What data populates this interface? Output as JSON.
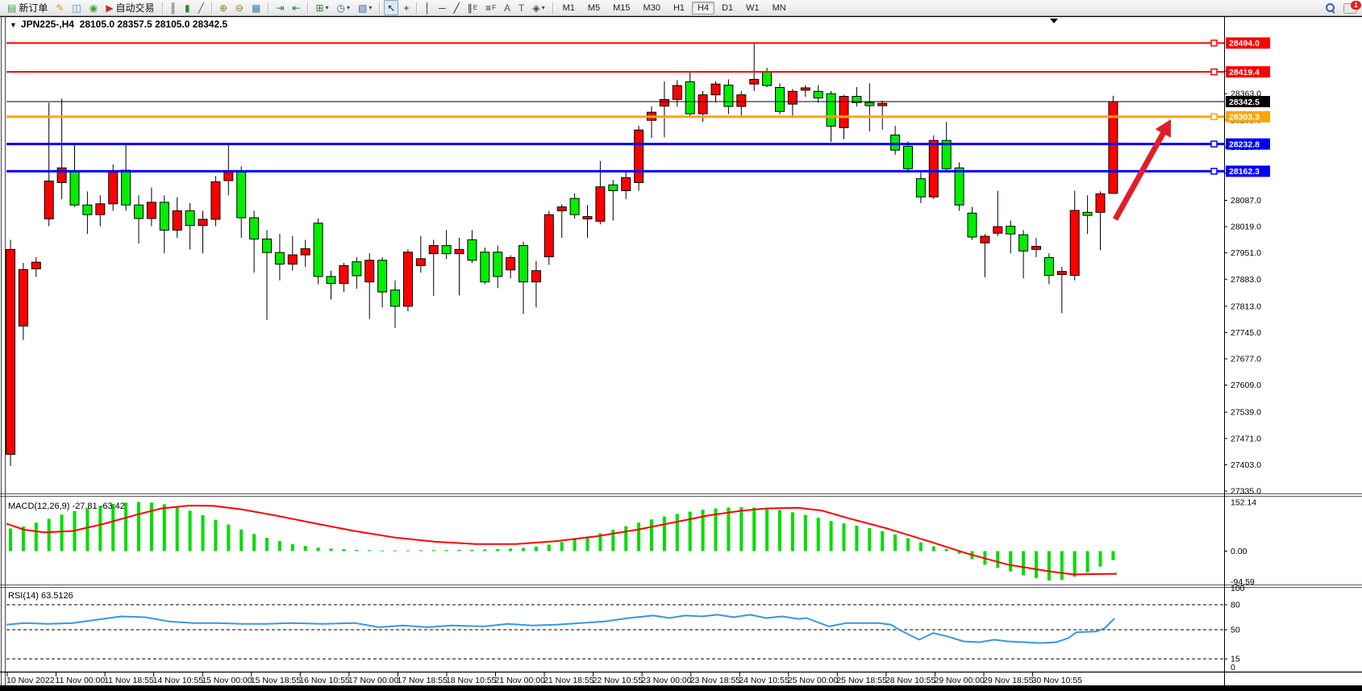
{
  "window": {
    "collapse_glyph": "▼",
    "title_symbol": "JPN225-,H4",
    "ohlc": "28105.0 28357.5 28105.0 28342.5"
  },
  "toolbar": {
    "items": [
      {
        "name": "new-order-button",
        "glyph": "▤",
        "glyph_color": "#3f9e3f",
        "label": "新订单"
      },
      {
        "name": "crayon-button",
        "glyph": "✎",
        "glyph_color": "#d2a017"
      },
      {
        "name": "chart-window-button",
        "glyph": "◫",
        "glyph_color": "#4f7dc0"
      },
      {
        "name": "signal-button",
        "glyph": "◉",
        "glyph_color": "#3f9e3f"
      },
      {
        "name": "autotrading-button",
        "glyph": "▶",
        "glyph_color": "#c63326",
        "label": "自动交易"
      },
      {
        "sep": true
      },
      {
        "name": "bar-chart-button",
        "glyph": "║",
        "glyph_color": "#2f6d2f"
      },
      {
        "name": "candlestick-chart-button",
        "glyph": "▮",
        "glyph_color": "#2f8d2f"
      },
      {
        "name": "line-chart-button",
        "glyph": "╱",
        "glyph_color": "#2f6d2f"
      },
      {
        "sep": true
      },
      {
        "name": "zoom-in-button",
        "glyph": "⊕",
        "glyph_color": "#8d7a1f"
      },
      {
        "name": "zoom-out-button",
        "glyph": "⊖",
        "glyph_color": "#8d7a1f"
      },
      {
        "name": "tile-windows-button",
        "glyph": "▦",
        "glyph_color": "#3a7fae"
      },
      {
        "sep": true
      },
      {
        "name": "auto-scroll-button",
        "glyph": "⇥",
        "glyph_color": "#2f7d2f"
      },
      {
        "name": "chart-shift-button",
        "glyph": "⇤",
        "glyph_color": "#2f7d2f"
      },
      {
        "sep": true
      },
      {
        "name": "indicators-button",
        "glyph": "⊞",
        "glyph_color": "#2f7d2f",
        "dropdown": true
      },
      {
        "name": "periods-button",
        "glyph": "◷",
        "glyph_color": "#35699f",
        "dropdown": true
      },
      {
        "name": "templates-button",
        "glyph": "▧",
        "glyph_color": "#35699f",
        "dropdown": true
      },
      {
        "sep": true
      },
      {
        "name": "cursor-button",
        "glyph": "↖",
        "glyph_color": "#222222",
        "active": true
      },
      {
        "name": "crosshair-button",
        "glyph": "+",
        "glyph_color": "#222222"
      },
      {
        "sep": true
      },
      {
        "name": "vertical-line-button",
        "glyph": "│",
        "glyph_color": "#222222"
      },
      {
        "name": "horizontal-line-button",
        "glyph": "─",
        "glyph_color": "#222222"
      },
      {
        "name": "trendline-button",
        "glyph": "╱",
        "glyph_color": "#222222"
      },
      {
        "name": "equidistant-channel-button",
        "glyph": "∥",
        "glyph_color": "#222222",
        "sub": "E"
      },
      {
        "name": "fibonacci-button",
        "glyph": "≡",
        "glyph_color": "#222222",
        "sub": "F"
      },
      {
        "name": "text-button",
        "glyph": "A",
        "glyph_color": "#555555"
      },
      {
        "name": "text-label-button",
        "glyph": "T",
        "glyph_color": "#555555"
      },
      {
        "name": "arrows-button",
        "glyph": "◈",
        "glyph_color": "#444444",
        "dropdown": true
      },
      {
        "sep": true
      }
    ],
    "dropdown_glyph": "▾",
    "timeframes": [
      {
        "label": "M1"
      },
      {
        "label": "M5"
      },
      {
        "label": "M15"
      },
      {
        "label": "M30"
      },
      {
        "label": "H1"
      },
      {
        "label": "H4",
        "active": true
      },
      {
        "label": "D1"
      },
      {
        "label": "W1"
      },
      {
        "label": "MN"
      }
    ],
    "chat_badge": "1"
  },
  "colors": {
    "bull_candle": "#ff0000",
    "bear_candle": "#00ee00",
    "wick": "#000000",
    "macd_bar": "#00dd00",
    "macd_signal": "#ff0000",
    "rsi_line": "#3a96e0",
    "level_red": "#ff0000",
    "level_orange": "#ffa500",
    "level_blue": "#0000ff",
    "current_price_label_bg": "#000000",
    "annotation_arrow": "#e01e28"
  },
  "chart_data": {
    "type": "candlestick+indicators",
    "symbol": "JPN225-",
    "timeframe": "H4",
    "current_price": 28342.5,
    "price_axis_ticks": [
      28421.0,
      28363.0,
      28295.0,
      28225.0,
      28157.0,
      28087.0,
      28019.0,
      27951.0,
      27883.0,
      27813.0,
      27745.0,
      27677.0,
      27609.0,
      27539.0,
      27471.0,
      27403.0,
      27335.0
    ],
    "levels": [
      {
        "price": 28494.0,
        "label": "28494.0",
        "color": "#ff0000",
        "width": 2,
        "current": false
      },
      {
        "price": 28419.4,
        "label": "28419.4",
        "color": "#ff0000",
        "width": 2,
        "current": false
      },
      {
        "price": 28342.5,
        "label": "28342.5",
        "color": "#000000",
        "width": 1,
        "current": true
      },
      {
        "price": 28303.3,
        "label": "28303.3",
        "color": "#ffa500",
        "width": 3,
        "current": false
      },
      {
        "price": 28232.8,
        "label": "28232.8",
        "color": "#0000ff",
        "width": 3,
        "current": false
      },
      {
        "price": 28162.3,
        "label": "28162.3",
        "color": "#0000ff",
        "width": 3,
        "current": false
      }
    ],
    "candles_ohlc": [
      [
        27430,
        27985,
        27400,
        27960
      ],
      [
        27762,
        27925,
        27726,
        27908
      ],
      [
        27910,
        27940,
        27889,
        27927
      ],
      [
        28039,
        28340,
        28020,
        28137
      ],
      [
        28133,
        28350,
        28090,
        28171
      ],
      [
        28164,
        28230,
        28070,
        28075
      ],
      [
        28075,
        28110,
        28000,
        28050
      ],
      [
        28050,
        28100,
        28020,
        28078
      ],
      [
        28078,
        28180,
        28060,
        28160
      ],
      [
        28165,
        28230,
        28060,
        28075
      ],
      [
        28075,
        28100,
        27975,
        28040
      ],
      [
        28040,
        28120,
        28020,
        28082
      ],
      [
        28082,
        28100,
        27950,
        28010
      ],
      [
        28010,
        28095,
        27990,
        28060
      ],
      [
        28060,
        28080,
        27960,
        28022
      ],
      [
        28022,
        28060,
        27950,
        28038
      ],
      [
        28038,
        28150,
        28020,
        28135
      ],
      [
        28138,
        28230,
        28100,
        28160
      ],
      [
        28160,
        28175,
        27990,
        28042
      ],
      [
        28042,
        28060,
        27900,
        27987
      ],
      [
        27987,
        28010,
        27778,
        27952
      ],
      [
        27952,
        28000,
        27880,
        27922
      ],
      [
        27922,
        27995,
        27905,
        27946
      ],
      [
        27946,
        27985,
        27915,
        27962
      ],
      [
        28028,
        28040,
        27870,
        27890
      ],
      [
        27890,
        27905,
        27830,
        27872
      ],
      [
        27872,
        27925,
        27850,
        27918
      ],
      [
        27928,
        27940,
        27858,
        27892
      ],
      [
        27876,
        27950,
        27780,
        27932
      ],
      [
        27932,
        27940,
        27810,
        27850
      ],
      [
        27855,
        27880,
        27757,
        27813
      ],
      [
        27813,
        27960,
        27800,
        27953
      ],
      [
        27918,
        27995,
        27900,
        27936
      ],
      [
        27949,
        27985,
        27840,
        27970
      ],
      [
        27970,
        28010,
        27935,
        27949
      ],
      [
        27949,
        27990,
        27841,
        27960
      ],
      [
        27985,
        28010,
        27925,
        27932
      ],
      [
        27953,
        27965,
        27870,
        27876
      ],
      [
        27953,
        27970,
        27860,
        27890
      ],
      [
        27907,
        27945,
        27885,
        27939
      ],
      [
        27970,
        27980,
        27793,
        27876
      ],
      [
        27876,
        27930,
        27810,
        27905
      ],
      [
        27941,
        28060,
        27920,
        28050
      ],
      [
        28060,
        28077,
        27990,
        28070
      ],
      [
        28092,
        28105,
        28040,
        28050
      ],
      [
        28039,
        28075,
        27990,
        28045
      ],
      [
        28033,
        28189,
        28025,
        28122
      ],
      [
        28127,
        28140,
        28035,
        28112
      ],
      [
        28112,
        28165,
        28090,
        28146
      ],
      [
        28133,
        28280,
        28112,
        28269
      ],
      [
        28294,
        28330,
        28248,
        28315
      ],
      [
        28331,
        28395,
        28250,
        28348
      ],
      [
        28348,
        28398,
        28330,
        28384
      ],
      [
        28394,
        28420,
        28300,
        28311
      ],
      [
        28311,
        28370,
        28290,
        28360
      ],
      [
        28360,
        28395,
        28340,
        28388
      ],
      [
        28385,
        28400,
        28310,
        28330
      ],
      [
        28330,
        28370,
        28300,
        28360
      ],
      [
        28388,
        28492,
        28370,
        28400
      ],
      [
        28419,
        28430,
        28380,
        28384
      ],
      [
        28379,
        28390,
        28310,
        28317
      ],
      [
        28336,
        28375,
        28300,
        28369
      ],
      [
        28372,
        28385,
        28355,
        28378
      ],
      [
        28369,
        28385,
        28340,
        28352
      ],
      [
        28363,
        28370,
        28238,
        28279
      ],
      [
        28275,
        28360,
        28245,
        28356
      ],
      [
        28356,
        28380,
        28330,
        28340
      ],
      [
        28340,
        28390,
        28265,
        28332
      ],
      [
        28332,
        28345,
        28270,
        28338
      ],
      [
        28256,
        28280,
        28205,
        28217
      ],
      [
        28227,
        28240,
        28160,
        28169
      ],
      [
        28143,
        28160,
        28080,
        28096
      ],
      [
        28096,
        28255,
        28090,
        28242
      ],
      [
        28242,
        28290,
        28160,
        28169
      ],
      [
        28171,
        28185,
        28060,
        28075
      ],
      [
        28054,
        28070,
        27985,
        27992
      ],
      [
        27977,
        28000,
        27888,
        27994
      ],
      [
        28002,
        28112,
        27995,
        28019
      ],
      [
        28020,
        28035,
        27950,
        28000
      ],
      [
        27998,
        28010,
        27885,
        27956
      ],
      [
        27960,
        27990,
        27940,
        27968
      ],
      [
        27939,
        27950,
        27870,
        27893
      ],
      [
        27895,
        27915,
        27795,
        27903
      ],
      [
        27893,
        28112,
        27880,
        28061
      ],
      [
        28056,
        28100,
        28000,
        28048
      ],
      [
        28056,
        28110,
        27958,
        28104
      ],
      [
        28105,
        28357.5,
        28105,
        28342.5
      ]
    ],
    "macd": {
      "label": "MACD(12,26,9)",
      "values_text": "-27.81 -63.42",
      "scale": [
        "152.14",
        "0.00",
        "-94.59"
      ],
      "histogram": [
        70,
        76,
        88,
        100,
        113,
        124,
        132,
        139,
        146,
        150,
        152,
        150,
        145,
        136,
        125,
        111,
        97,
        82,
        67,
        53,
        41,
        31,
        22,
        16,
        11,
        8,
        6,
        4,
        3,
        2,
        2,
        2,
        3,
        3,
        3,
        4,
        4,
        5,
        6,
        8,
        10,
        14,
        20,
        28,
        36,
        45,
        55,
        66,
        77,
        88,
        98,
        107,
        115,
        122,
        128,
        132,
        135,
        136,
        135,
        132,
        127,
        120,
        112,
        103,
        93,
        86,
        79,
        71,
        62,
        52,
        40,
        27,
        15,
        7,
        -8,
        -25,
        -42,
        -52,
        -63,
        -75,
        -83,
        -91,
        -89,
        -79,
        -66,
        -48,
        -28
      ],
      "signal_points": [
        [
          8,
          85
        ],
        [
          30,
          66
        ],
        [
          55,
          58
        ],
        [
          90,
          62
        ],
        [
          130,
          85
        ],
        [
          170,
          113
        ],
        [
          200,
          132
        ],
        [
          235,
          141
        ],
        [
          265,
          140
        ],
        [
          300,
          129
        ],
        [
          340,
          111
        ],
        [
          390,
          86
        ],
        [
          440,
          62
        ],
        [
          490,
          42
        ],
        [
          540,
          29
        ],
        [
          590,
          22
        ],
        [
          640,
          22
        ],
        [
          690,
          31
        ],
        [
          740,
          46
        ],
        [
          790,
          66
        ],
        [
          840,
          91
        ],
        [
          880,
          111
        ],
        [
          920,
          125
        ],
        [
          950,
          132
        ],
        [
          990,
          134
        ],
        [
          1020,
          125
        ],
        [
          1050,
          103
        ],
        [
          1100,
          70
        ],
        [
          1150,
          32
        ],
        [
          1200,
          -8
        ],
        [
          1250,
          -42
        ],
        [
          1300,
          -62
        ],
        [
          1330,
          -72
        ],
        [
          1385,
          -70
        ]
      ]
    },
    "rsi": {
      "label": "RSI(14)",
      "value_text": "63.5126",
      "scale": [
        "100",
        "80",
        "50",
        "15",
        "0"
      ],
      "dashed_levels": [
        80,
        50,
        15
      ],
      "points": [
        [
          8,
          56
        ],
        [
          30,
          58
        ],
        [
          60,
          57
        ],
        [
          90,
          58
        ],
        [
          120,
          62
        ],
        [
          150,
          66
        ],
        [
          180,
          65
        ],
        [
          210,
          60
        ],
        [
          240,
          58
        ],
        [
          270,
          58
        ],
        [
          300,
          57
        ],
        [
          330,
          57
        ],
        [
          360,
          58
        ],
        [
          400,
          57
        ],
        [
          440,
          58
        ],
        [
          470,
          53
        ],
        [
          500,
          55
        ],
        [
          530,
          53
        ],
        [
          560,
          55
        ],
        [
          600,
          54
        ],
        [
          630,
          57
        ],
        [
          660,
          55
        ],
        [
          690,
          56
        ],
        [
          720,
          58
        ],
        [
          750,
          60
        ],
        [
          780,
          64
        ],
        [
          810,
          67
        ],
        [
          830,
          64
        ],
        [
          850,
          67
        ],
        [
          870,
          66
        ],
        [
          890,
          68
        ],
        [
          910,
          65
        ],
        [
          930,
          68
        ],
        [
          950,
          64
        ],
        [
          970,
          66
        ],
        [
          990,
          63
        ],
        [
          1000,
          64
        ],
        [
          1028,
          54
        ],
        [
          1050,
          58
        ],
        [
          1090,
          58
        ],
        [
          1105,
          56
        ],
        [
          1115,
          50
        ],
        [
          1140,
          38
        ],
        [
          1157,
          46
        ],
        [
          1175,
          42
        ],
        [
          1195,
          36
        ],
        [
          1215,
          35
        ],
        [
          1233,
          38
        ],
        [
          1250,
          36
        ],
        [
          1270,
          35
        ],
        [
          1290,
          34
        ],
        [
          1310,
          35
        ],
        [
          1325,
          40
        ],
        [
          1335,
          47
        ],
        [
          1360,
          48
        ],
        [
          1370,
          52
        ],
        [
          1382,
          63.5
        ]
      ]
    },
    "x_axis_labels": [
      "10 Nov 2022",
      "11 Nov 00:00",
      "11 Nov 18:55",
      "14 Nov 10:55",
      "15 Nov 00:00",
      "15 Nov 18:55",
      "16 Nov 10:55",
      "17 Nov 00:00",
      "17 Nov 18:55",
      "18 Nov 10:55",
      "21 Nov 00:00",
      "21 Nov 18:55",
      "22 Nov 10:55",
      "23 Nov 00:00",
      "23 Nov 18:55",
      "24 Nov 10:55",
      "25 Nov 00:00",
      "25 Nov 18:55",
      "28 Nov 10:55",
      "29 Nov 00:00",
      "29 Nov 18:55",
      "30 Nov 10:55"
    ],
    "annotation_arrow": {
      "from": [
        1383,
        272
      ],
      "to": [
        1452,
        148
      ]
    }
  }
}
